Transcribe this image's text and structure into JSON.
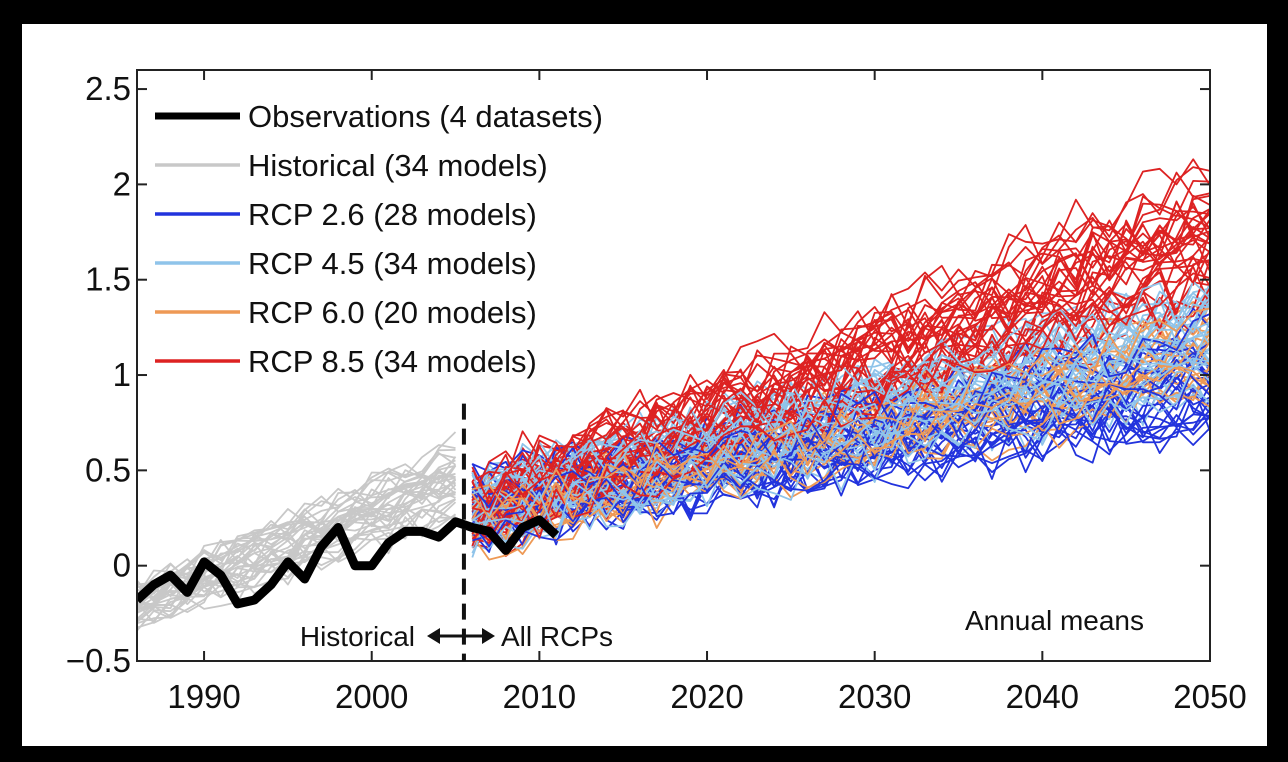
{
  "chart_data": {
    "type": "line",
    "xlim": [
      1986,
      2050
    ],
    "ylim": [
      -0.5,
      2.6
    ],
    "x_ticks": [
      "1990",
      "2000",
      "2010",
      "2020",
      "2030",
      "2040",
      "2050"
    ],
    "y_ticks": [
      "−0.5",
      "0",
      "0.5",
      "1",
      "1.5",
      "2",
      "2.5"
    ],
    "grid": false,
    "legend_position": "top-left",
    "legend": [
      {
        "label": "Observations (4 datasets)",
        "color": "#000000"
      },
      {
        "label": "Historical (34 models)",
        "color": "#c8c8c8"
      },
      {
        "label": "RCP 2.6 (28 models)",
        "color": "#2233dd"
      },
      {
        "label": "RCP 4.5 (34 models)",
        "color": "#8fc4ea"
      },
      {
        "label": "RCP 6.0 (20 models)",
        "color": "#ee9955"
      },
      {
        "label": "RCP 8.5 (34 models)",
        "color": "#dd2222"
      }
    ],
    "divider_year": 2005.5,
    "annotations": {
      "left": "Historical",
      "right": "All RCPs",
      "corner": "Annual means"
    },
    "observations": {
      "x": [
        1986,
        1987,
        1988,
        1989,
        1990,
        1991,
        1992,
        1993,
        1994,
        1995,
        1996,
        1997,
        1998,
        1999,
        2000,
        2001,
        2002,
        2003,
        2004,
        2005,
        2006,
        2007,
        2008,
        2009,
        2010,
        2011
      ],
      "y": [
        -0.18,
        -0.1,
        -0.05,
        -0.14,
        0.02,
        -0.05,
        -0.2,
        -0.18,
        -0.1,
        0.02,
        -0.07,
        0.1,
        0.2,
        0.0,
        0.0,
        0.12,
        0.18,
        0.18,
        0.15,
        0.23,
        0.2,
        0.18,
        0.08,
        0.2,
        0.24,
        0.16
      ]
    },
    "series": [
      {
        "name": "Historical (34 models)",
        "color": "#c8c8c8",
        "models": 34,
        "x_range": [
          1986,
          2005
        ],
        "trend_start": -0.2,
        "trend_end": 0.45,
        "spread": 0.3
      },
      {
        "name": "RCP 2.6 (28 models)",
        "color": "#2233dd",
        "models": 28,
        "x_range": [
          2006,
          2050
        ],
        "trend_start": 0.3,
        "trend_end": 1.0,
        "spread": 0.5
      },
      {
        "name": "RCP 4.5 (34 models)",
        "color": "#8fc4ea",
        "models": 34,
        "x_range": [
          2006,
          2050
        ],
        "trend_start": 0.3,
        "trend_end": 1.2,
        "spread": 0.5
      },
      {
        "name": "RCP 6.0 (20 models)",
        "color": "#ee9955",
        "models": 20,
        "x_range": [
          2006,
          2050
        ],
        "trend_start": 0.25,
        "trend_end": 1.1,
        "spread": 0.45
      },
      {
        "name": "RCP 8.5 (34 models)",
        "color": "#dd2222",
        "models": 34,
        "x_range": [
          2006,
          2050
        ],
        "trend_start": 0.3,
        "trend_end": 1.75,
        "spread": 0.55
      }
    ]
  }
}
